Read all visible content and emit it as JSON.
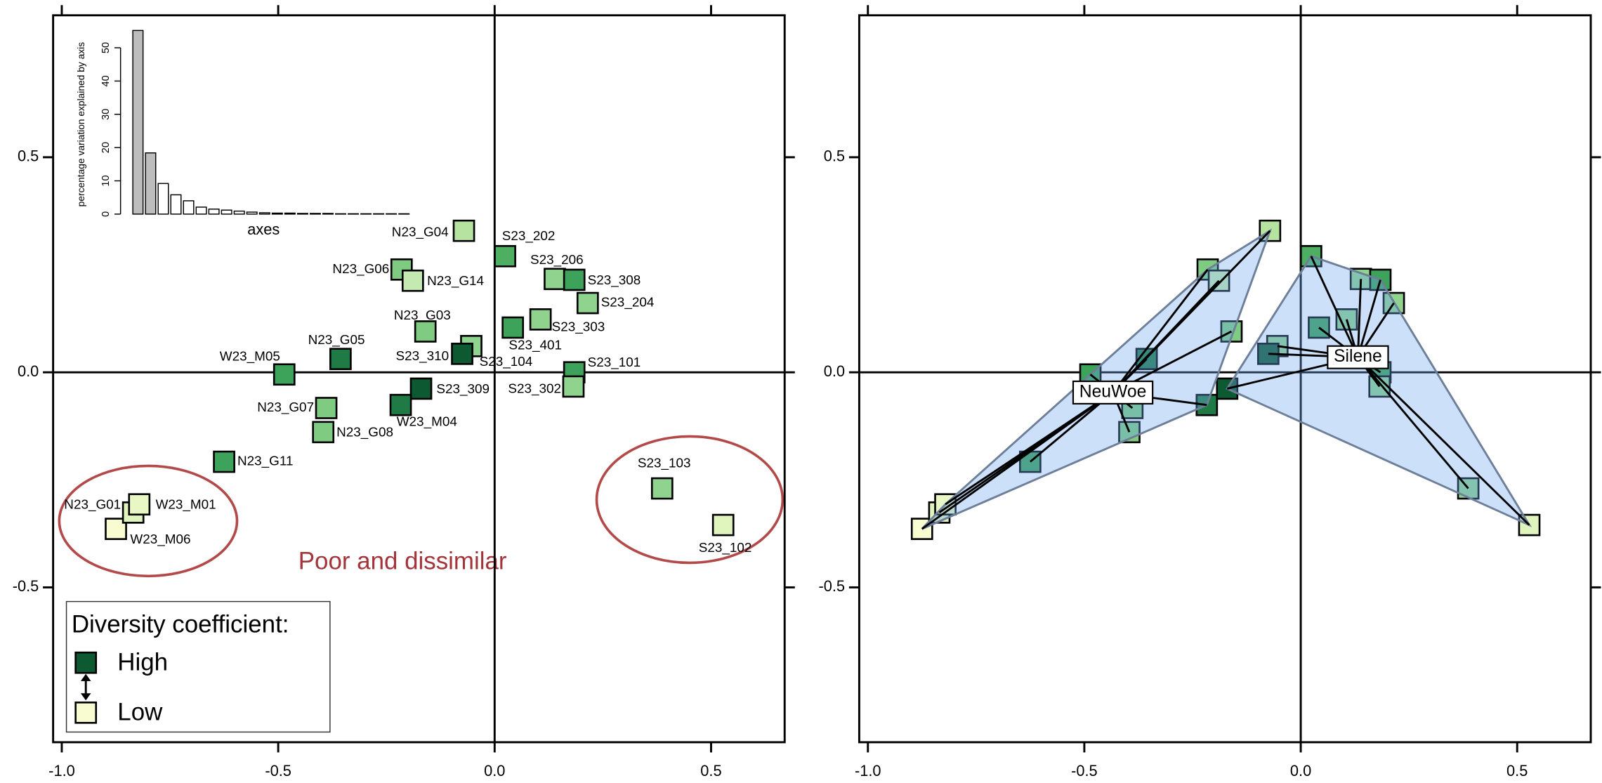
{
  "chart_data": [
    {
      "type": "scatter",
      "labels": [
        "N23_G04",
        "S23_202",
        "S23_206",
        "S23_308",
        "S23_204",
        "N23_G06",
        "N23_G14",
        "N23_G03",
        "S23_303",
        "S23_401",
        "N23_G05",
        "W23_M05",
        "S23_104",
        "S23_310",
        "S23_101",
        "S23_302",
        "S23_309",
        "W23_M04",
        "N23_G07",
        "N23_G08",
        "N23_G11",
        "S23_103",
        "S23_102",
        "W23_M06",
        "N23_G01",
        "W23_M01"
      ],
      "x": [
        -0.071,
        0.024,
        0.139,
        0.184,
        0.215,
        -0.215,
        -0.189,
        -0.16,
        0.106,
        0.042,
        -0.356,
        -0.486,
        -0.054,
        -0.075,
        0.184,
        0.182,
        -0.17,
        -0.217,
        -0.389,
        -0.396,
        -0.625,
        0.387,
        0.528,
        -0.875,
        -0.835,
        -0.821
      ],
      "y": [
        0.329,
        0.27,
        0.217,
        0.215,
        0.161,
        0.239,
        0.213,
        0.095,
        0.123,
        0.104,
        0.031,
        -0.005,
        0.061,
        0.043,
        0.0,
        -0.033,
        -0.038,
        -0.076,
        -0.083,
        -0.139,
        -0.208,
        -0.27,
        -0.355,
        -0.364,
        -0.326,
        -0.307
      ],
      "colors": [
        "#b7e3a0",
        "#4eaf62",
        "#8fd38f",
        "#3da25a",
        "#8fd38f",
        "#7fcb82",
        "#c5eab1",
        "#7fcb82",
        "#8fd38f",
        "#3da25a",
        "#1f7a45",
        "#3da25a",
        "#8fd38f",
        "#0d5a32",
        "#3da25a",
        "#8fd38f",
        "#0d5a32",
        "#1f7a45",
        "#7fcb82",
        "#7fcb82",
        "#3da25a",
        "#8fd38f",
        "#e0f4bd",
        "#f8fcd0",
        "#e0f4bd",
        "#e8f7c4"
      ],
      "xlim": [
        -1.02,
        0.67
      ],
      "ylim": [
        -0.86,
        0.83
      ],
      "xticks": [
        {
          "value": -1.0,
          "label": "-1.0"
        },
        {
          "value": -0.5,
          "label": "-0.5"
        },
        {
          "value": 0.0,
          "label": "0.0"
        },
        {
          "value": 0.5,
          "label": "0.5"
        }
      ],
      "yticks": [
        {
          "value": -0.5,
          "label": "-0.5"
        },
        {
          "value": 0.0,
          "label": "0.0"
        },
        {
          "value": 0.5,
          "label": "0.5"
        }
      ],
      "legend": {
        "title": "Diversity coefficient:",
        "items": [
          {
            "label": "High",
            "color": "#0d5a32"
          },
          {
            "label": "Low",
            "color": "#f8fcd0"
          }
        ]
      },
      "annotation": "Poor and dissimilar"
    },
    {
      "type": "bar",
      "ylabel": "percentage variation explained by axis",
      "xlabel": "axes",
      "values": [
        55.2,
        18.4,
        9.2,
        5.8,
        4.0,
        2.1,
        1.5,
        1.2,
        0.9,
        0.6,
        0.4,
        0.3,
        0.3,
        0.2,
        0.2,
        0.2,
        0.1,
        0.1,
        0.1,
        0.1,
        0.1,
        0.1
      ],
      "colors": [
        "#bdbdbd",
        "#bdbdbd",
        "#ffffff",
        "#ffffff",
        "#ffffff",
        "#ffffff",
        "#ffffff",
        "#ffffff",
        "#ffffff",
        "#ffffff",
        "#ffffff",
        "#ffffff",
        "#ffffff",
        "#ffffff",
        "#ffffff",
        "#ffffff",
        "#ffffff",
        "#ffffff",
        "#ffffff",
        "#ffffff",
        "#ffffff",
        "#ffffff"
      ],
      "ylim": [
        0,
        57
      ],
      "yticks": [
        0,
        10,
        20,
        30,
        40,
        50
      ]
    },
    {
      "type": "scatter",
      "series": [
        {
          "name": "NeuWoe",
          "x": [
            -0.071,
            -0.215,
            -0.189,
            -0.16,
            -0.356,
            -0.486,
            -0.217,
            -0.389,
            -0.396,
            -0.625,
            -0.875,
            -0.835,
            -0.821
          ],
          "y": [
            0.329,
            0.239,
            0.213,
            0.095,
            0.031,
            -0.005,
            -0.076,
            -0.083,
            -0.139,
            -0.208,
            -0.364,
            -0.326,
            -0.307
          ],
          "colors": [
            "#b7e3a0",
            "#7fcb82",
            "#c5eab1",
            "#7fcb82",
            "#1f7a45",
            "#3da25a",
            "#1f7a45",
            "#7fcb82",
            "#7fcb82",
            "#3da25a",
            "#f8fcd0",
            "#e0f4bd",
            "#e8f7c4"
          ],
          "centroid": {
            "x": -0.434,
            "y": -0.047
          }
        },
        {
          "name": "Silene",
          "x": [
            0.024,
            0.139,
            0.184,
            0.215,
            0.106,
            0.042,
            -0.054,
            -0.075,
            0.184,
            0.182,
            -0.17,
            0.387,
            0.528
          ],
          "y": [
            0.27,
            0.217,
            0.215,
            0.161,
            0.123,
            0.104,
            0.061,
            0.043,
            0.0,
            -0.033,
            -0.038,
            -0.27,
            -0.355
          ],
          "colors": [
            "#4eaf62",
            "#8fd38f",
            "#3da25a",
            "#8fd38f",
            "#8fd38f",
            "#3da25a",
            "#8fd38f",
            "#0d5a32",
            "#3da25a",
            "#8fd38f",
            "#0d5a32",
            "#8fd38f",
            "#e0f4bd"
          ],
          "centroid": {
            "x": 0.132,
            "y": 0.035
          }
        }
      ],
      "xlim": [
        -1.02,
        0.67
      ],
      "ylim": [
        -0.86,
        0.83
      ],
      "xticks": [
        {
          "value": -1.0,
          "label": "-1.0"
        },
        {
          "value": -0.5,
          "label": "-0.5"
        },
        {
          "value": 0.0,
          "label": "0.0"
        },
        {
          "value": 0.5,
          "label": "0.5"
        }
      ],
      "yticks": [
        {
          "value": -0.5,
          "label": "-0.5"
        },
        {
          "value": 0.0,
          "label": "0.0"
        },
        {
          "value": 0.5,
          "label": "0.5"
        }
      ]
    }
  ]
}
